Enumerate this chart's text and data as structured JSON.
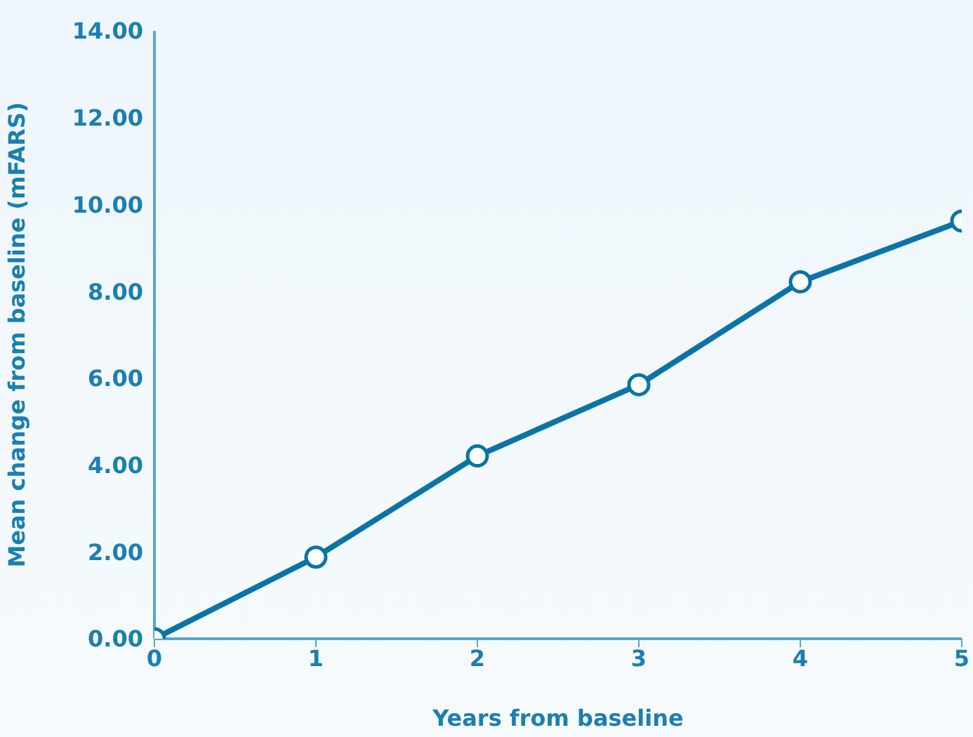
{
  "chart_data": {
    "type": "line",
    "xlabel": "Years from baseline",
    "ylabel": "Mean change from baseline (mFARS)",
    "x": [
      0,
      1,
      2,
      3,
      4,
      5
    ],
    "series": [
      {
        "color": "#0b74a5",
        "values": [
          0,
          1.88,
          4.21,
          5.85,
          8.22,
          9.62
        ]
      }
    ],
    "xlim": [
      0,
      5
    ],
    "xticks": [
      0,
      1,
      2,
      3,
      4,
      5
    ],
    "ylim": [
      0,
      14
    ],
    "yticks": [
      {
        "value": 0,
        "label": "0.00"
      },
      {
        "value": 2,
        "label": "2.00"
      },
      {
        "value": 4,
        "label": "4.00"
      },
      {
        "value": 6,
        "label": "6.00"
      },
      {
        "value": 8,
        "label": "8.00"
      },
      {
        "value": 10,
        "label": "10.00"
      },
      {
        "value": 12,
        "label": "12.00"
      },
      {
        "value": 14,
        "label": "14.00"
      }
    ],
    "grid": false,
    "legend": false,
    "marker": "circle",
    "line_style": "solid"
  }
}
